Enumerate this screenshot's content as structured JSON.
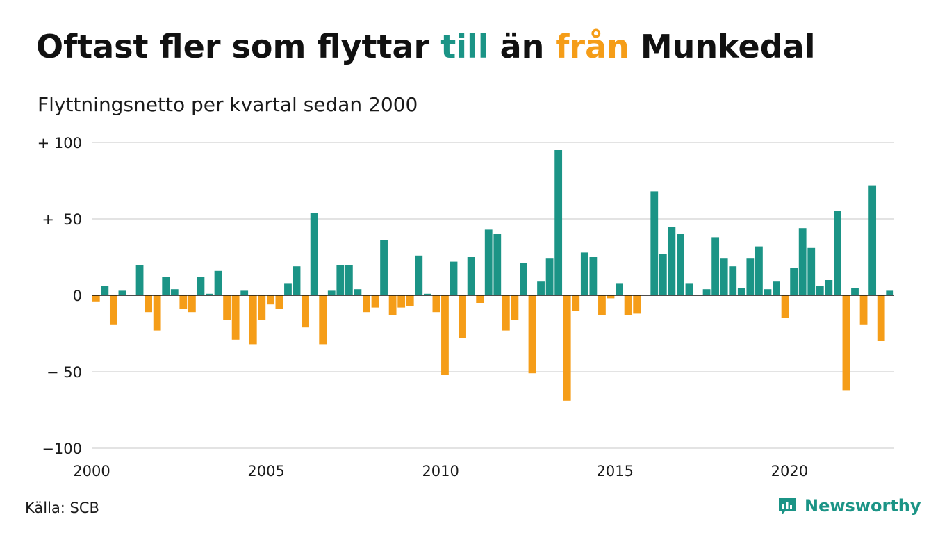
{
  "title": {
    "part1": "Oftast fler som flyttar ",
    "part2": "till",
    "part3": " än ",
    "part4": "från",
    "part5": " Munkedal"
  },
  "subtitle": "Flyttningsnetto per kvartal sedan 2000",
  "source": "Källa: SCB",
  "brand": {
    "name": "Newsworthy",
    "logo_icon": "newsworthy-logo-icon"
  },
  "colors": {
    "positive": "#1b9486",
    "negative": "#f59d18",
    "grid": "#e3e3e3",
    "axis": "#111111"
  },
  "chart_data": {
    "type": "bar",
    "title": "Oftast fler som flyttar till än från Munkedal",
    "subtitle": "Flyttningsnetto per kvartal sedan 2000",
    "xlabel": "",
    "ylabel": "",
    "x_start": "2000-Q1",
    "frequency": "quarterly",
    "ylim": [
      -100,
      100
    ],
    "y_ticks": [
      {
        "value": 100,
        "label": "+ 100"
      },
      {
        "value": 50,
        "label": "+  50"
      },
      {
        "value": 0,
        "label": "0"
      },
      {
        "value": -50,
        "label": "− 50"
      },
      {
        "value": -100,
        "label": "−100"
      }
    ],
    "x_ticks": [
      {
        "label": "2000",
        "year": 2000
      },
      {
        "label": "2005",
        "year": 2005
      },
      {
        "label": "2010",
        "year": 2010
      },
      {
        "label": "2015",
        "year": 2015
      },
      {
        "label": "2020",
        "year": 2020
      }
    ],
    "grid": true,
    "legend": "none",
    "values": [
      -4,
      6,
      -19,
      3,
      0,
      20,
      -11,
      -23,
      12,
      4,
      -9,
      -11,
      12,
      1,
      16,
      -16,
      -29,
      3,
      -32,
      -16,
      -6,
      -9,
      8,
      19,
      -21,
      54,
      -32,
      3,
      20,
      20,
      4,
      -11,
      -8,
      36,
      -13,
      -8,
      -7,
      26,
      1,
      -11,
      -52,
      22,
      -28,
      25,
      -5,
      43,
      40,
      -23,
      -16,
      21,
      -51,
      9,
      24,
      95,
      -69,
      -10,
      28,
      25,
      -13,
      -2,
      8,
      -13,
      -12,
      0,
      68,
      27,
      45,
      40,
      8,
      0,
      4,
      38,
      24,
      19,
      5,
      24,
      32,
      4,
      9,
      -15,
      18,
      44,
      31,
      6,
      10,
      55,
      -62,
      5,
      -19,
      72,
      -30,
      3
    ]
  }
}
